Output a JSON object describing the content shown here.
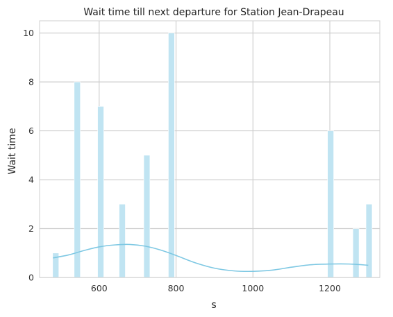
{
  "chart_data": {
    "type": "bar",
    "title": "Wait time till next departure for Station Jean-Drapeau",
    "xlabel": "s",
    "ylabel": "Wait time",
    "xlim": [
      445,
      1330
    ],
    "ylim": [
      0,
      10.5
    ],
    "xticks": [
      600,
      800,
      1000,
      1200
    ],
    "yticks": [
      0,
      2,
      4,
      6,
      8,
      10
    ],
    "bin_width": 16,
    "bars": [
      {
        "x": 487,
        "value": 1
      },
      {
        "x": 543,
        "value": 8
      },
      {
        "x": 604,
        "value": 7
      },
      {
        "x": 660,
        "value": 3
      },
      {
        "x": 724,
        "value": 5
      },
      {
        "x": 788,
        "value": 10
      },
      {
        "x": 1202,
        "value": 6
      },
      {
        "x": 1268,
        "value": 2
      },
      {
        "x": 1302,
        "value": 3
      }
    ],
    "kde_curve": {
      "x": [
        480,
        520,
        560,
        600,
        640,
        680,
        720,
        760,
        800,
        850,
        900,
        950,
        1000,
        1050,
        1100,
        1150,
        1200,
        1250,
        1300
      ],
      "y": [
        0.8,
        0.92,
        1.1,
        1.25,
        1.33,
        1.35,
        1.28,
        1.12,
        0.9,
        0.6,
        0.38,
        0.27,
        0.25,
        0.3,
        0.42,
        0.52,
        0.55,
        0.55,
        0.5
      ]
    },
    "grid": true,
    "colors": {
      "bar": "#c0e4f2",
      "kde": "#7ec8e3",
      "grid": "#cfcfcf",
      "spine": "#cfcfcf"
    }
  }
}
